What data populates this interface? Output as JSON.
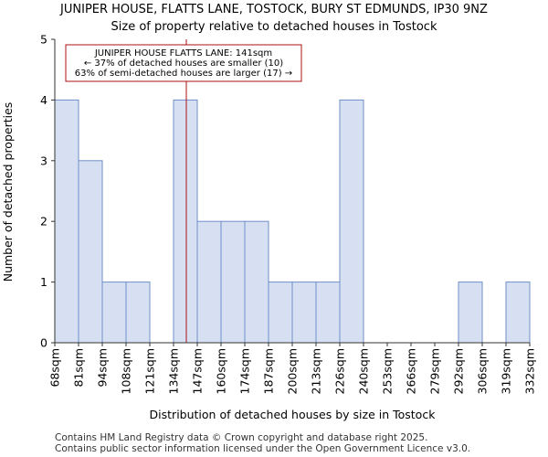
{
  "chart_data": {
    "type": "bar",
    "title": "JUNIPER HOUSE, FLATTS LANE, TOSTOCK, BURY ST EDMUNDS, IP30 9NZ",
    "subtitle": "Size of property relative to detached houses in Tostock",
    "xlabel": "Distribution of detached houses by size in Tostock",
    "ylabel": "Number of detached properties",
    "bin_edges": [
      68,
      81,
      94,
      108,
      121,
      134,
      147,
      160,
      174,
      187,
      200,
      213,
      226,
      240,
      253,
      266,
      279,
      292,
      306,
      319,
      332
    ],
    "bin_labels": [
      "68sqm",
      "81sqm",
      "94sqm",
      "108sqm",
      "121sqm",
      "134sqm",
      "147sqm",
      "160sqm",
      "174sqm",
      "187sqm",
      "200sqm",
      "213sqm",
      "226sqm",
      "240sqm",
      "253sqm",
      "266sqm",
      "279sqm",
      "292sqm",
      "306sqm",
      "319sqm",
      "332sqm"
    ],
    "values": [
      4,
      3,
      1,
      1,
      0,
      4,
      2,
      2,
      2,
      1,
      1,
      1,
      4,
      0,
      0,
      0,
      0,
      1,
      0,
      1
    ],
    "ylim": [
      0,
      5
    ],
    "yticks": [
      "0",
      "1",
      "2",
      "3",
      "4",
      "5"
    ],
    "marker_value": 141,
    "annotation": {
      "line1": "JUNIPER HOUSE FLATTS LANE: 141sqm",
      "line2": "← 37% of detached houses are smaller (10)",
      "line3": "63% of semi-detached houses are larger (17) →"
    },
    "bar_fill": "#d6e0f2",
    "bar_stroke": "#6f8fc7",
    "marker_color": "#aa1111",
    "grid": false
  },
  "footer": {
    "line1": "Contains HM Land Registry data © Crown copyright and database right 2025.",
    "line2": "Contains public sector information licensed under the Open Government Licence v3.0."
  }
}
